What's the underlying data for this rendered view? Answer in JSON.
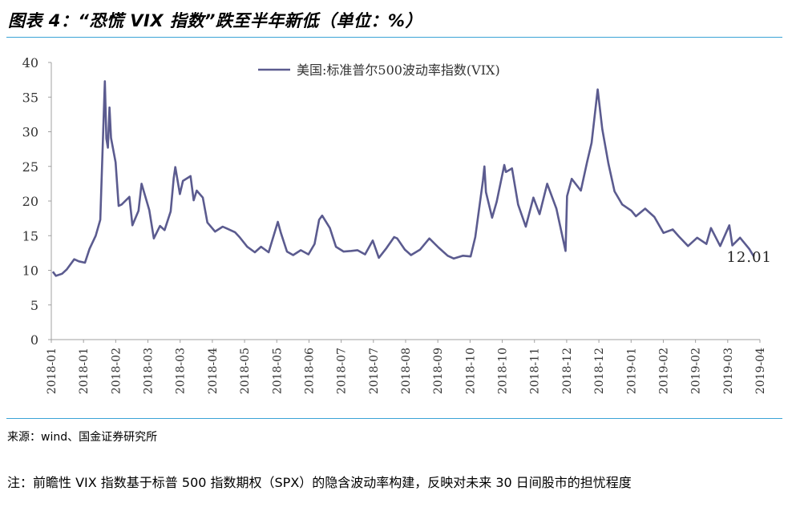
{
  "figure": {
    "title": "图表 4：“恐慌 VIX 指数”跌至半年新低（单位：%）",
    "source": "来源：wind、国金证券研究所",
    "note": "注：前瞻性 VIX 指数基于标普 500 指数期权（SPX）的隐含波动率构建，反映对未来 30 日间股市的担忧程度"
  },
  "colors": {
    "series": "#5b5b8f",
    "rule": "#3aa3d6",
    "axis": "#a0a0a0"
  },
  "chart_data": {
    "type": "line",
    "title": "",
    "xlabel": "",
    "ylabel": "",
    "ylim": [
      0,
      40
    ],
    "yticks": [
      0,
      5,
      10,
      15,
      20,
      25,
      30,
      35,
      40
    ],
    "x_tick_labels": [
      "2018-01",
      "2018-01",
      "2018-02",
      "2018-03",
      "2018-03",
      "2018-04",
      "2018-05",
      "2018-05",
      "2018-06",
      "2018-07",
      "2018-07",
      "2018-08",
      "2018-09",
      "2018-10",
      "2018-10",
      "2018-11",
      "2018-12",
      "2018-12",
      "2019-01",
      "2019-02",
      "2019-02",
      "2019-03",
      "2019-04"
    ],
    "grid": false,
    "legend_position": "top-center",
    "end_label": "12.01",
    "series": [
      {
        "name": "美国:标准普尔500波动率指数(VIX)",
        "x": [
          "2018-01-02",
          "2018-01-04",
          "2018-01-08",
          "2018-01-11",
          "2018-01-16",
          "2018-01-19",
          "2018-01-23",
          "2018-01-26",
          "2018-01-30",
          "2018-02-02",
          "2018-02-05",
          "2018-02-06",
          "2018-02-07",
          "2018-02-08",
          "2018-02-09",
          "2018-02-12",
          "2018-02-14",
          "2018-02-16",
          "2018-02-21",
          "2018-02-23",
          "2018-02-27",
          "2018-03-01",
          "2018-03-06",
          "2018-03-09",
          "2018-03-13",
          "2018-03-16",
          "2018-03-20",
          "2018-03-22",
          "2018-03-23",
          "2018-03-26",
          "2018-03-28",
          "2018-04-02",
          "2018-04-04",
          "2018-04-06",
          "2018-04-10",
          "2018-04-13",
          "2018-04-18",
          "2018-04-23",
          "2018-04-26",
          "2018-05-01",
          "2018-05-04",
          "2018-05-09",
          "2018-05-14",
          "2018-05-18",
          "2018-05-23",
          "2018-05-29",
          "2018-05-31",
          "2018-06-04",
          "2018-06-08",
          "2018-06-13",
          "2018-06-18",
          "2018-06-22",
          "2018-06-25",
          "2018-06-27",
          "2018-07-02",
          "2018-07-06",
          "2018-07-11",
          "2018-07-16",
          "2018-07-20",
          "2018-07-25",
          "2018-07-30",
          "2018-08-03",
          "2018-08-08",
          "2018-08-13",
          "2018-08-15",
          "2018-08-20",
          "2018-08-24",
          "2018-08-30",
          "2018-09-05",
          "2018-09-11",
          "2018-09-17",
          "2018-09-21",
          "2018-09-27",
          "2018-10-02",
          "2018-10-05",
          "2018-10-10",
          "2018-10-11",
          "2018-10-12",
          "2018-10-16",
          "2018-10-19",
          "2018-10-24",
          "2018-10-25",
          "2018-10-29",
          "2018-11-02",
          "2018-11-07",
          "2018-11-12",
          "2018-11-16",
          "2018-11-21",
          "2018-11-27",
          "2018-12-03",
          "2018-12-04",
          "2018-12-07",
          "2018-12-13",
          "2018-12-17",
          "2018-12-20",
          "2018-12-24",
          "2018-12-27",
          "2018-12-31",
          "2019-01-04",
          "2019-01-09",
          "2019-01-15",
          "2019-01-18",
          "2019-01-24",
          "2019-01-30",
          "2019-02-05",
          "2019-02-11",
          "2019-02-15",
          "2019-02-21",
          "2019-02-27",
          "2019-03-05",
          "2019-03-08",
          "2019-03-14",
          "2019-03-20",
          "2019-03-22",
          "2019-03-27",
          "2019-04-02",
          "2019-04-05"
        ],
        "values": [
          9.8,
          9.2,
          9.5,
          10.1,
          11.6,
          11.3,
          11.1,
          13.1,
          15.0,
          17.3,
          37.3,
          29.0,
          27.7,
          33.5,
          29.1,
          25.6,
          19.3,
          19.5,
          20.6,
          16.5,
          18.6,
          22.5,
          18.7,
          14.6,
          16.4,
          15.8,
          18.5,
          23.3,
          24.9,
          21.0,
          22.9,
          23.6,
          20.1,
          21.5,
          20.5,
          16.9,
          15.6,
          16.3,
          16.0,
          15.5,
          14.8,
          13.4,
          12.6,
          13.4,
          12.6,
          17.0,
          15.4,
          12.7,
          12.2,
          12.9,
          12.3,
          13.8,
          17.3,
          17.9,
          16.1,
          13.4,
          12.7,
          12.8,
          12.9,
          12.3,
          14.3,
          11.8,
          13.2,
          14.8,
          14.6,
          13.0,
          12.2,
          13.0,
          14.6,
          13.3,
          12.1,
          11.7,
          12.1,
          12.0,
          14.8,
          22.9,
          25.0,
          21.3,
          17.6,
          19.9,
          25.2,
          24.2,
          24.7,
          19.5,
          16.3,
          20.5,
          18.1,
          22.5,
          18.9,
          12.8,
          20.7,
          23.2,
          21.5,
          25.6,
          28.4,
          36.1,
          30.4,
          25.4,
          21.4,
          19.5,
          18.6,
          17.8,
          18.9,
          17.7,
          15.4,
          15.9,
          14.9,
          13.5,
          14.7,
          13.8,
          16.1,
          13.5,
          16.5,
          13.6,
          14.7,
          13.1,
          12.0
        ]
      }
    ]
  }
}
